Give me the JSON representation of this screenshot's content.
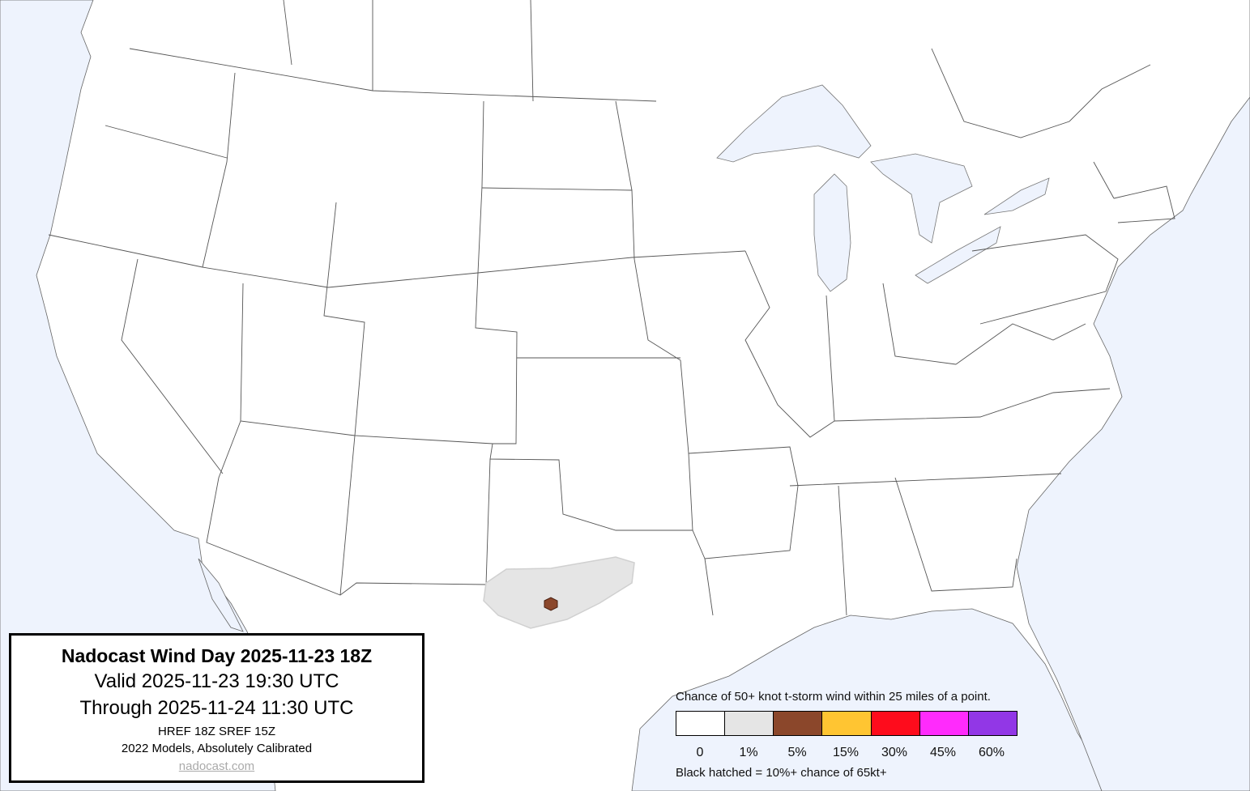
{
  "info_box": {
    "title": "Nadocast Wind Day 2025-11-23 18Z",
    "valid": "Valid 2025-11-23 19:30 UTC",
    "through": "Through 2025-11-24 11:30 UTC",
    "models": "HREF 18Z SREF 15Z",
    "calibration": "2022 Models, Absolutely Calibrated",
    "link": "nadocast.com"
  },
  "legend": {
    "title": "Chance of 50+ knot t-storm wind within 25 miles of a point.",
    "bins": [
      {
        "label": "0",
        "color": "#ffffff"
      },
      {
        "label": "1%",
        "color": "#e5e5e5"
      },
      {
        "label": "5%",
        "color": "#8b472b"
      },
      {
        "label": "15%",
        "color": "#ffc532"
      },
      {
        "label": "30%",
        "color": "#fe0c1c"
      },
      {
        "label": "45%",
        "color": "#ff2bfc"
      },
      {
        "label": "60%",
        "color": "#9237e6"
      }
    ],
    "hatch_note": "Black hatched = 10%+ chance of 65kt+"
  },
  "map": {
    "water_color": "#eef3fd",
    "land_color": "#ffffff",
    "forecast_areas": [
      {
        "level": "1%",
        "region": "West/Central Texas",
        "color": "#e5e5e5"
      },
      {
        "level": "5%",
        "region": "West Central Texas",
        "color": "#8b472b"
      }
    ]
  }
}
